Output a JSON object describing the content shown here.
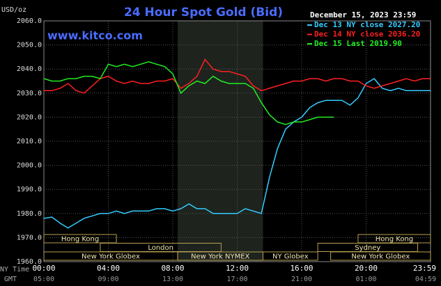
{
  "chart_data": {
    "type": "line",
    "title": "24 Hour Spot Gold (Bid)",
    "subtitle": "December 15, 2023 23:59",
    "y_label": "USD/oz",
    "watermark": "www.kitco.com",
    "x_row_labels": [
      "NY Time",
      "GMT"
    ],
    "xlim": [
      0,
      24
    ],
    "ylim": [
      1960,
      2060
    ],
    "grid": true,
    "xticks": [
      {
        "value": 0,
        "label": "00:00"
      },
      {
        "value": 4,
        "label": "04:00"
      },
      {
        "value": 8,
        "label": "08:00"
      },
      {
        "value": 12,
        "label": "12:00"
      },
      {
        "value": 16,
        "label": "16:00"
      },
      {
        "value": 20,
        "label": "20:00"
      },
      {
        "value": 23.98,
        "label": "23:59"
      }
    ],
    "gmt_ticks": [
      {
        "value": 0,
        "label": "05:00"
      },
      {
        "value": 4,
        "label": "09:00"
      },
      {
        "value": 8,
        "label": "13:00"
      },
      {
        "value": 12,
        "label": "17:00"
      },
      {
        "value": 16,
        "label": "21:00"
      },
      {
        "value": 20,
        "label": "01:00"
      },
      {
        "value": 23.98,
        "label": "04:59"
      }
    ],
    "yticks": [
      {
        "value": 2060,
        "label": "2060.0"
      },
      {
        "value": 2050,
        "label": "2050.0"
      },
      {
        "value": 2040,
        "label": "2040.0"
      },
      {
        "value": 2030,
        "label": "2030.0"
      },
      {
        "value": 2020,
        "label": "2020.0"
      },
      {
        "value": 2010,
        "label": "2010.0"
      },
      {
        "value": 2000,
        "label": "2000.0"
      },
      {
        "value": 1990,
        "label": "1990.0"
      },
      {
        "value": 1980,
        "label": "1980.0"
      },
      {
        "value": 1970,
        "label": "1970.0"
      },
      {
        "value": 1960,
        "label": "1960.0"
      }
    ],
    "sessions": [
      "Hong Kong",
      "Hong Kong",
      "London",
      "Sydney",
      "New York Globex",
      "New York NYMEX",
      "NY Globex",
      "New York Globex"
    ],
    "x": [
      0,
      0.5,
      1,
      1.5,
      2,
      2.5,
      3,
      3.5,
      4,
      4.5,
      5,
      5.5,
      6,
      6.5,
      7,
      7.5,
      8,
      8.5,
      9,
      9.5,
      10,
      10.5,
      11,
      11.5,
      12,
      12.5,
      13,
      13.5,
      14,
      14.5,
      15,
      15.5,
      16,
      16.5,
      17,
      17.5,
      18,
      18.5,
      19,
      19.5,
      20,
      20.5,
      21,
      21.5,
      22,
      22.5,
      23,
      23.5,
      24
    ],
    "series": [
      {
        "name": "Dec 13 NY close 2027.20",
        "color": "#33ccff",
        "values": [
          1978,
          1978.5,
          1976,
          1974,
          1976,
          1978,
          1979,
          1980,
          1980,
          1981,
          1980,
          1981,
          1981,
          1981,
          1982,
          1982,
          1981,
          1982,
          1984,
          1982,
          1982,
          1980,
          1980,
          1980,
          1980,
          1982,
          1981,
          1980,
          1995,
          2007,
          2015,
          2018,
          2020,
          2024,
          2026,
          2027,
          2027,
          2027,
          2025,
          2028,
          2034,
          2036,
          2032,
          2031,
          2032,
          2031,
          2031,
          2031,
          2031
        ]
      },
      {
        "name": "Dec 14 NY close 2036.20",
        "color": "#ff2020",
        "values": [
          2031,
          2031,
          2032,
          2034,
          2031,
          2030,
          2033,
          2036,
          2037,
          2035,
          2034,
          2035,
          2034,
          2034,
          2035,
          2035,
          2036,
          2032,
          2034,
          2037,
          2044,
          2040,
          2039,
          2039,
          2038,
          2037,
          2033,
          2031,
          2032,
          2033,
          2034,
          2035,
          2035,
          2036,
          2036,
          2035,
          2036,
          2036,
          2035,
          2035,
          2033,
          2032,
          2033,
          2034,
          2035,
          2036,
          2035,
          2036,
          2036
        ]
      },
      {
        "name": "Dec 15 Last 2019.90",
        "color": "#22ee22",
        "values": [
          2036,
          2035,
          2035,
          2036,
          2036,
          2037,
          2037,
          2036,
          2042,
          2041,
          2042,
          2041,
          2042,
          2043,
          2042,
          2041,
          2038,
          2030,
          2033,
          2035,
          2034,
          2037,
          2035,
          2034,
          2034,
          2034,
          2032,
          2026,
          2021,
          2018,
          2017,
          2018,
          2018,
          2019,
          2020,
          2020,
          2020,
          null,
          null,
          null,
          null,
          null,
          null,
          null,
          null,
          null,
          null,
          null,
          null
        ]
      }
    ]
  }
}
